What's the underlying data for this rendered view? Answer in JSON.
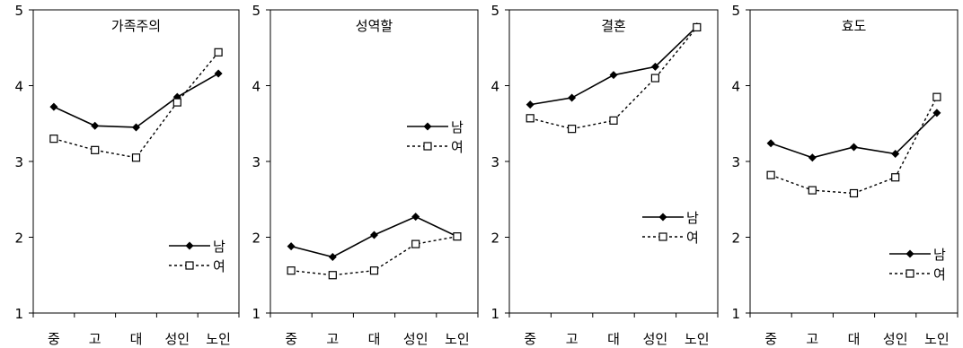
{
  "chart_data": [
    {
      "type": "line",
      "title": "가족주의",
      "categories": [
        "중",
        "고",
        "대",
        "성인",
        "노인"
      ],
      "ylim": [
        1,
        5
      ],
      "yticks": [
        1,
        2,
        3,
        4,
        5
      ],
      "legend_position": "bottom-right",
      "series": [
        {
          "name": "남",
          "values": [
            3.72,
            3.47,
            3.45,
            3.85,
            4.16
          ]
        },
        {
          "name": "여",
          "values": [
            3.3,
            3.15,
            3.05,
            3.78,
            4.44
          ]
        }
      ]
    },
    {
      "type": "line",
      "title": "성역할",
      "categories": [
        "중",
        "고",
        "대",
        "성인",
        "노인"
      ],
      "ylim": [
        1,
        5
      ],
      "yticks": [
        1,
        2,
        3,
        4,
        5
      ],
      "legend_position": "top-right",
      "series": [
        {
          "name": "남",
          "values": [
            1.88,
            1.74,
            2.03,
            2.27,
            2.01
          ]
        },
        {
          "name": "여",
          "values": [
            1.56,
            1.5,
            1.56,
            1.91,
            2.01
          ]
        }
      ]
    },
    {
      "type": "line",
      "title": "결혼",
      "categories": [
        "중",
        "고",
        "대",
        "성인",
        "노인"
      ],
      "ylim": [
        1,
        5
      ],
      "yticks": [
        1,
        2,
        3,
        4,
        5
      ],
      "legend_position": "bottom-right",
      "series": [
        {
          "name": "남",
          "values": [
            3.75,
            3.84,
            4.14,
            4.25,
            4.78
          ]
        },
        {
          "name": "여",
          "values": [
            3.57,
            3.43,
            3.54,
            4.1,
            4.77
          ]
        }
      ]
    },
    {
      "type": "line",
      "title": "효도",
      "categories": [
        "중",
        "고",
        "대",
        "성인",
        "노인"
      ],
      "ylim": [
        1,
        5
      ],
      "yticks": [
        1,
        2,
        3,
        4,
        5
      ],
      "legend_position": "bottom-right",
      "series": [
        {
          "name": "남",
          "values": [
            3.24,
            3.05,
            3.19,
            3.1,
            3.64
          ]
        },
        {
          "name": "여",
          "values": [
            2.82,
            2.62,
            2.58,
            2.79,
            3.85
          ]
        }
      ]
    }
  ]
}
